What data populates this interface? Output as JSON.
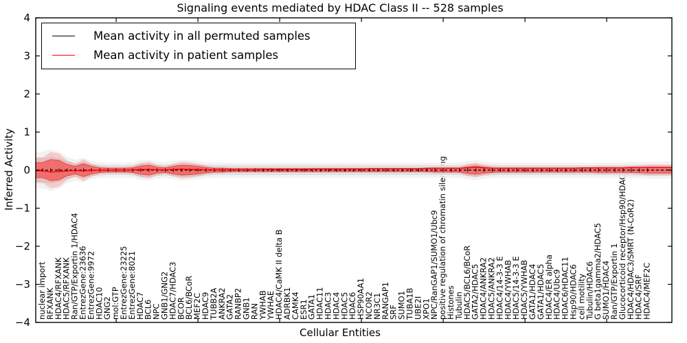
{
  "title": "Signaling events mediated by HDAC Class II -- 528 samples",
  "legend": {
    "items": [
      {
        "label": "Mean activity in all permuted samples",
        "color": "#000000"
      },
      {
        "label": "Mean activity in patient samples",
        "color": "#ff0000"
      }
    ]
  },
  "axes": {
    "ylabel": "Inferred Activity",
    "xlabel": "Cellular Entities",
    "yticks": [
      4,
      3,
      2,
      1,
      0,
      -1,
      -2,
      -3,
      -4
    ],
    "ylim": [
      -4,
      4
    ],
    "grid": "off",
    "legend_position": "upper-left"
  },
  "colors": {
    "permuted_line": "#000000",
    "patient_line": "#ff0000",
    "permuted_band": "#e2e2e2",
    "permuted_band_outer": "#f0f0f0",
    "patient_band": "rgba(255,0,0,0.42)",
    "patient_band_outer": "rgba(255,0,0,0.16)",
    "frame": "#000000"
  },
  "chart_data": {
    "type": "line",
    "title": "Signaling events mediated by HDAC Class II -- 528 samples",
    "xlabel": "Cellular Entities",
    "ylabel": "Inferred Activity",
    "ylim": [
      -4,
      4
    ],
    "categories": [
      "nuclear import",
      "RFXANK",
      "HDAC4/RFXANK",
      "HDAC5/RFXANK",
      "Ran/GTP/Exportin 1/HDAC4",
      "EntrezGene:23636",
      "EntrezGene:9972",
      "HDAC10",
      "GNG2",
      "mol:GTP",
      "EntrezGene:23225",
      "EntrezGene:8021",
      "HDAC7",
      "BCL6",
      "NPC",
      "GNB1/GNG2",
      "HDAC7/HDAC3",
      "BCOR",
      "BCL6/BCoR",
      "MEF2C",
      "HDAC9",
      "TUBB2A",
      "ANKRA2",
      "GATA2",
      "RANBP2",
      "GNB1",
      "RAN",
      "YWHAB",
      "YWHAE",
      "HDAC4/CaMK II delta B",
      "ADRBK1",
      "CAMK4",
      "ESR1",
      "GATA1",
      "HDAC11",
      "HDAC3",
      "HDAC4",
      "HDAC5",
      "HDAC6",
      "HSP90AA1",
      "NCOR2",
      "NR3C1",
      "RANGAP1",
      "SRF",
      "SUMO1",
      "TUBA1B",
      "UBE2I",
      "XPO1",
      "NPC/RanGAP1/SUMO1/Ubc9",
      "positive regulation of chromatin silencing",
      "Histones",
      "Tubulin",
      "HDAC5/BCL6/BCoR",
      "GATA2/HDAC5",
      "HDAC4/ANKRA2",
      "HDAC5/ANKRA2",
      "HDAC4/14-3-3 E",
      "HDAC4/YWHAB",
      "HDAC5/14-3-3 E",
      "HDAC5/YWHAB",
      "GATA1/HDAC4",
      "GATA1/HDAC5",
      "HDAC4/ER alpha",
      "HDAC4/Ubc9",
      "HDAC6/HDAC11",
      "Hsp90/HDAC6",
      "cell motility",
      "Tubulin/HDAC6",
      "G beta1gamma2/HDAC5",
      "SUMO1/HDAC4",
      "Ran/GTP/Exportin 1",
      "Glucocorticoid receptor/Hsp90/HDAC6",
      "HDAC4/HDAC3/SMRT (N-CoR2)",
      "HDAC4/SRF",
      "HDAC4/MEF2C"
    ],
    "series": [
      {
        "name": "Mean activity in all permuted samples",
        "color": "#000000",
        "values": [
          0,
          0,
          0,
          0,
          0,
          0,
          0,
          0,
          0,
          0,
          0,
          0,
          0,
          0,
          0,
          0,
          0,
          0,
          0,
          0,
          0,
          0,
          0,
          0,
          0,
          0,
          0,
          0,
          0,
          0,
          0,
          0,
          0,
          0,
          0,
          0,
          0,
          0,
          0,
          0,
          0,
          0,
          0,
          0,
          0,
          0,
          0,
          0,
          0,
          0,
          0,
          0,
          0,
          0,
          0,
          0,
          0,
          0,
          0,
          0,
          0,
          0,
          0,
          0,
          0,
          0,
          0,
          0,
          0,
          0,
          0,
          0,
          0,
          0,
          0
        ]
      },
      {
        "name": "Mean activity in patient samples",
        "color": "#ff0000",
        "values": [
          -0.02,
          -0.05,
          -0.04,
          -0.02,
          -0.01,
          -0.02,
          -0.01,
          0,
          0,
          0,
          0,
          0.01,
          0.02,
          0.02,
          0.01,
          0.01,
          0.02,
          0.03,
          0.02,
          0.02,
          0.01,
          0.01,
          0.01,
          0.01,
          0.01,
          0.01,
          0.01,
          0.02,
          0.02,
          0.02,
          0.02,
          0.02,
          0.02,
          0.03,
          0.03,
          0.03,
          0.03,
          0.03,
          0.03,
          0.03,
          0.04,
          0.04,
          0.04,
          0.04,
          0.04,
          0.04,
          0.04,
          0.05,
          0.05,
          0.05,
          0.05,
          0.05,
          0.06,
          0.07,
          0.06,
          0.05,
          0.05,
          0.05,
          0.05,
          0.05,
          0.05,
          0.05,
          0.05,
          0.05,
          0.05,
          0.05,
          0.06,
          0.06,
          0.06,
          0.06,
          0.06,
          0.06,
          0.07,
          0.07,
          0.07
        ]
      }
    ],
    "bands": [
      {
        "name": "permuted samples spread",
        "color": "#e2e2e2",
        "halfwidths": [
          0.3,
          0.34,
          0.3,
          0.22,
          0.17,
          0.2,
          0.15,
          0.13,
          0.12,
          0.12,
          0.12,
          0.13,
          0.16,
          0.17,
          0.14,
          0.13,
          0.15,
          0.17,
          0.16,
          0.15,
          0.13,
          0.12,
          0.12,
          0.12,
          0.12,
          0.12,
          0.12,
          0.12,
          0.12,
          0.12,
          0.12,
          0.12,
          0.12,
          0.12,
          0.12,
          0.12,
          0.12,
          0.12,
          0.12,
          0.12,
          0.12,
          0.12,
          0.12,
          0.12,
          0.12,
          0.12,
          0.12,
          0.12,
          0.12,
          0.12,
          0.12,
          0.12,
          0.15,
          0.16,
          0.14,
          0.13,
          0.12,
          0.12,
          0.12,
          0.12,
          0.12,
          0.12,
          0.12,
          0.12,
          0.12,
          0.12,
          0.12,
          0.12,
          0.12,
          0.12,
          0.12,
          0.13,
          0.13,
          0.13,
          0.14
        ]
      },
      {
        "name": "patient samples spread",
        "color": "rgba(255,0,0,0.42)",
        "halfwidths": [
          0.2,
          0.28,
          0.26,
          0.15,
          0.1,
          0.17,
          0.1,
          0.06,
          0.05,
          0.05,
          0.05,
          0.06,
          0.11,
          0.13,
          0.08,
          0.06,
          0.1,
          0.13,
          0.12,
          0.1,
          0.07,
          0.05,
          0.05,
          0.04,
          0.04,
          0.04,
          0.04,
          0.04,
          0.04,
          0.04,
          0.04,
          0.04,
          0.04,
          0.04,
          0.04,
          0.04,
          0.04,
          0.04,
          0.04,
          0.04,
          0.04,
          0.04,
          0.04,
          0.04,
          0.04,
          0.04,
          0.04,
          0.04,
          0.05,
          0.05,
          0.05,
          0.05,
          0.09,
          0.11,
          0.08,
          0.06,
          0.05,
          0.05,
          0.05,
          0.05,
          0.05,
          0.05,
          0.05,
          0.05,
          0.05,
          0.05,
          0.05,
          0.05,
          0.06,
          0.06,
          0.06,
          0.06,
          0.06,
          0.07,
          0.08
        ]
      }
    ]
  }
}
